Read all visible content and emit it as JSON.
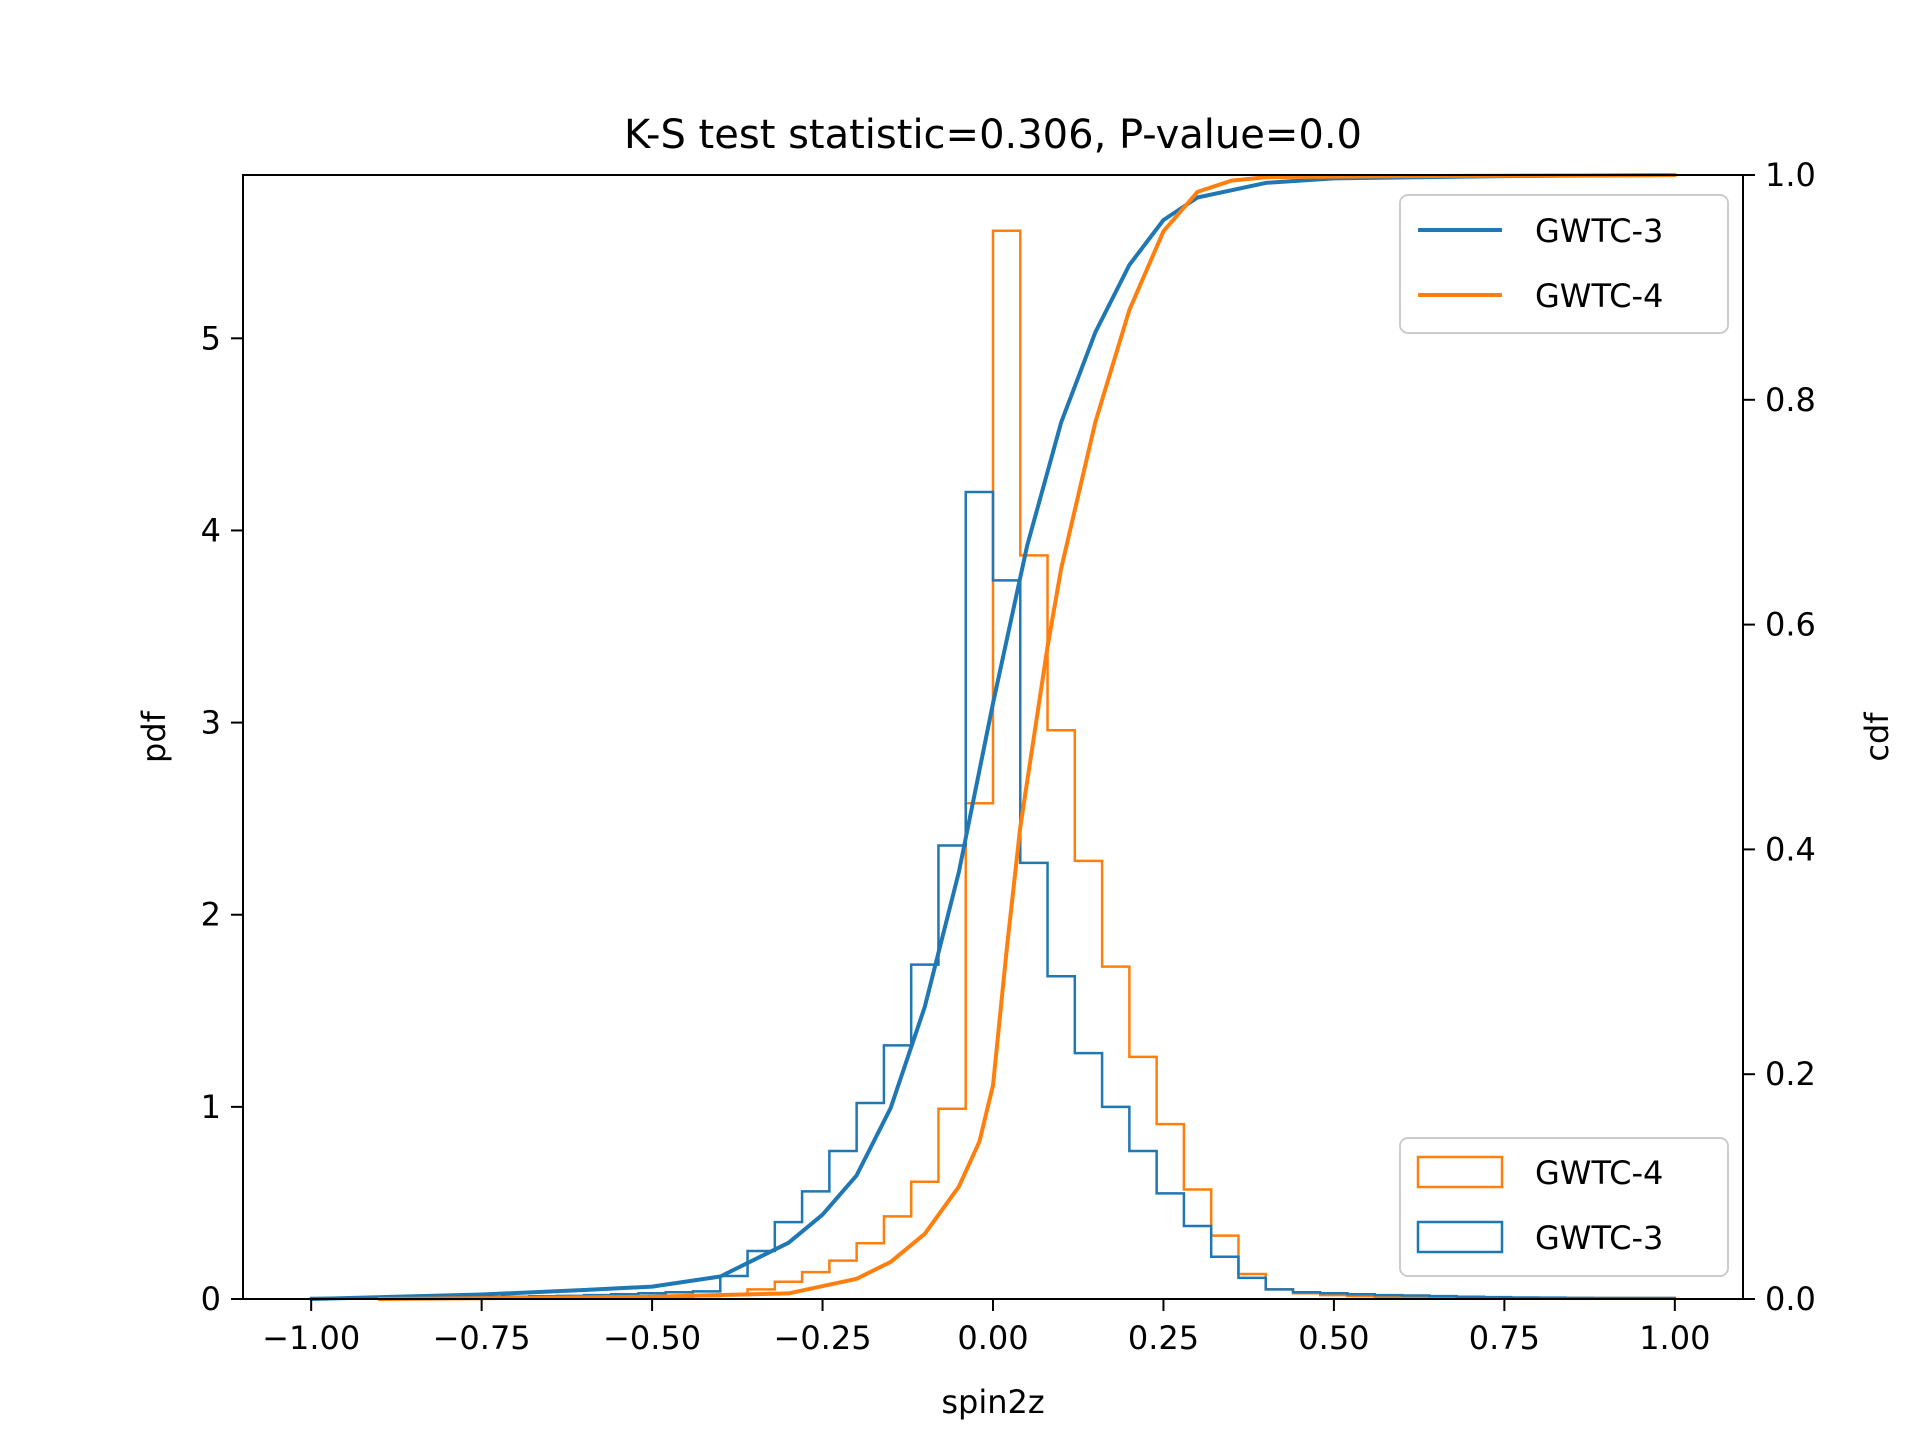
{
  "chart_data": {
    "type": "histogram+line",
    "title": "K-S test statistic=0.306, P-value=0.0",
    "xlabel": "spin2z",
    "ylabel_left": "pdf",
    "ylabel_right": "cdf",
    "xlim": [
      -1.1,
      1.1
    ],
    "ylim_left": [
      0,
      5.85
    ],
    "ylim_right": [
      0,
      1.0
    ],
    "grid": false,
    "x_ticks": [
      -1.0,
      -0.75,
      -0.5,
      -0.25,
      0.0,
      0.25,
      0.5,
      0.75,
      1.0
    ],
    "x_tick_labels": [
      "−1.00",
      "−0.75",
      "−0.50",
      "−0.25",
      "0.00",
      "0.25",
      "0.50",
      "0.75",
      "1.00"
    ],
    "y_left_ticks": [
      0,
      1,
      2,
      3,
      4,
      5
    ],
    "y_left_tick_labels": [
      "0",
      "1",
      "2",
      "3",
      "4",
      "5"
    ],
    "y_right_ticks": [
      0.0,
      0.2,
      0.4,
      0.6,
      0.8,
      1.0
    ],
    "y_right_tick_labels": [
      "0.0",
      "0.2",
      "0.4",
      "0.6",
      "0.8",
      "1.0"
    ],
    "colors": {
      "GWTC-3": "#1f77b4",
      "GWTC-4": "#ff7f0e"
    },
    "histograms": [
      {
        "name": "GWTC-3",
        "color": "#1f77b4",
        "bin_edges": [
          -1.0,
          -0.96,
          -0.92,
          -0.88,
          -0.84,
          -0.8,
          -0.76,
          -0.72,
          -0.68,
          -0.64,
          -0.6,
          -0.56,
          -0.52,
          -0.48,
          -0.44,
          -0.4,
          -0.36,
          -0.32,
          -0.28,
          -0.24,
          -0.2,
          -0.16,
          -0.12,
          -0.08,
          -0.04,
          0.0,
          0.04,
          0.08,
          0.12,
          0.16,
          0.2,
          0.24,
          0.28,
          0.32,
          0.36,
          0.4,
          0.44,
          0.48,
          0.52,
          0.56,
          0.6,
          0.64,
          0.68,
          0.72,
          0.76,
          0.8,
          0.84,
          0.88,
          0.92,
          0.96,
          1.0
        ],
        "values": [
          0.005,
          0.005,
          0.005,
          0.006,
          0.007,
          0.008,
          0.01,
          0.012,
          0.014,
          0.016,
          0.02,
          0.025,
          0.03,
          0.035,
          0.04,
          0.12,
          0.25,
          0.4,
          0.56,
          0.77,
          1.02,
          1.32,
          1.74,
          2.36,
          4.2,
          3.74,
          2.27,
          1.68,
          1.28,
          1.0,
          0.77,
          0.55,
          0.38,
          0.22,
          0.11,
          0.05,
          0.035,
          0.03,
          0.025,
          0.02,
          0.018,
          0.015,
          0.012,
          0.01,
          0.008,
          0.007,
          0.006,
          0.005,
          0.005,
          0.005
        ]
      },
      {
        "name": "GWTC-4",
        "color": "#ff7f0e",
        "bin_edges": [
          -0.88,
          -0.84,
          -0.8,
          -0.76,
          -0.72,
          -0.68,
          -0.64,
          -0.6,
          -0.56,
          -0.52,
          -0.48,
          -0.44,
          -0.4,
          -0.36,
          -0.32,
          -0.28,
          -0.24,
          -0.2,
          -0.16,
          -0.12,
          -0.08,
          -0.04,
          0.0,
          0.04,
          0.08,
          0.12,
          0.16,
          0.2,
          0.24,
          0.28,
          0.32,
          0.36,
          0.4,
          0.44,
          0.48,
          0.52,
          0.56,
          0.6,
          0.64,
          0.68,
          0.72,
          0.76,
          0.8,
          0.84,
          0.88,
          0.92,
          0.96,
          1.0
        ],
        "values": [
          0.005,
          0.005,
          0.005,
          0.005,
          0.006,
          0.006,
          0.007,
          0.008,
          0.009,
          0.01,
          0.012,
          0.015,
          0.02,
          0.05,
          0.09,
          0.14,
          0.2,
          0.29,
          0.43,
          0.61,
          0.99,
          2.58,
          5.56,
          3.87,
          2.96,
          2.28,
          1.73,
          1.26,
          0.91,
          0.57,
          0.33,
          0.13,
          0.05,
          0.03,
          0.02,
          0.015,
          0.012,
          0.01,
          0.009,
          0.008,
          0.007,
          0.006,
          0.006,
          0.005,
          0.005,
          0.005,
          0.005
        ]
      }
    ],
    "cdfs": [
      {
        "name": "GWTC-3",
        "color": "#1f77b4",
        "x": [
          -1.0,
          -0.75,
          -0.6,
          -0.5,
          -0.4,
          -0.3,
          -0.25,
          -0.2,
          -0.15,
          -0.1,
          -0.05,
          0.0,
          0.05,
          0.1,
          0.15,
          0.2,
          0.25,
          0.3,
          0.4,
          0.5,
          0.75,
          1.0
        ],
        "y": [
          0.0,
          0.004,
          0.008,
          0.011,
          0.02,
          0.05,
          0.075,
          0.11,
          0.17,
          0.26,
          0.38,
          0.53,
          0.67,
          0.78,
          0.86,
          0.92,
          0.96,
          0.98,
          0.993,
          0.997,
          0.999,
          1.0
        ]
      },
      {
        "name": "GWTC-4",
        "color": "#ff7f0e",
        "x": [
          -0.9,
          -0.5,
          -0.3,
          -0.2,
          -0.15,
          -0.1,
          -0.05,
          -0.02,
          0.0,
          0.02,
          0.04,
          0.06,
          0.08,
          0.1,
          0.15,
          0.2,
          0.25,
          0.3,
          0.35,
          0.4,
          0.6,
          1.0
        ],
        "y": [
          0.0,
          0.002,
          0.005,
          0.018,
          0.033,
          0.058,
          0.1,
          0.14,
          0.19,
          0.31,
          0.42,
          0.5,
          0.58,
          0.65,
          0.78,
          0.88,
          0.95,
          0.985,
          0.995,
          0.998,
          0.999,
          1.0
        ]
      }
    ],
    "legend_lines": {
      "placement": "upper right",
      "entries": [
        "GWTC-3",
        "GWTC-4"
      ]
    },
    "legend_hist": {
      "placement": "lower right",
      "entries": [
        "GWTC-4",
        "GWTC-3"
      ]
    }
  }
}
